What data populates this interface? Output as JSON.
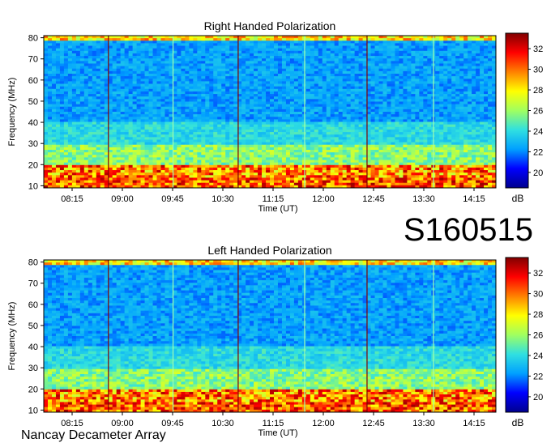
{
  "station_id": "S160515",
  "observatory": "Nancay Decameter Array",
  "colorbar_unit": "dB",
  "colors": {
    "scale": [
      "#00008f",
      "#0000ff",
      "#00a0ff",
      "#30e0e0",
      "#a0ff60",
      "#ffff00",
      "#ff8000",
      "#ff0000",
      "#800000"
    ]
  },
  "chart_data": [
    {
      "type": "heatmap",
      "title": "Right Handed Polarization",
      "xlabel": "Time (UT)",
      "ylabel": "Frequency (MHz)",
      "x_ticks": [
        "08:15",
        "09:00",
        "09:45",
        "10:30",
        "11:15",
        "12:00",
        "12:45",
        "13:30",
        "14:15"
      ],
      "y_ticks": [
        10,
        20,
        30,
        40,
        50,
        60,
        70,
        80
      ],
      "ylim": [
        9,
        81
      ],
      "colorbar_ticks": [
        20,
        22,
        24,
        26,
        28,
        30,
        32
      ],
      "colorbar_range": [
        18.5,
        33.5
      ]
    },
    {
      "type": "heatmap",
      "title": "Left Handed Polarization",
      "xlabel": "Time (UT)",
      "ylabel": "Frequency (MHz)",
      "x_ticks": [
        "08:15",
        "09:00",
        "09:45",
        "10:30",
        "11:15",
        "12:00",
        "12:45",
        "13:30",
        "14:15"
      ],
      "y_ticks": [
        10,
        20,
        30,
        40,
        50,
        60,
        70,
        80
      ],
      "ylim": [
        9,
        81
      ],
      "colorbar_ticks": [
        20,
        22,
        24,
        26,
        28,
        30,
        32
      ],
      "colorbar_range": [
        18.5,
        33.5
      ]
    }
  ]
}
